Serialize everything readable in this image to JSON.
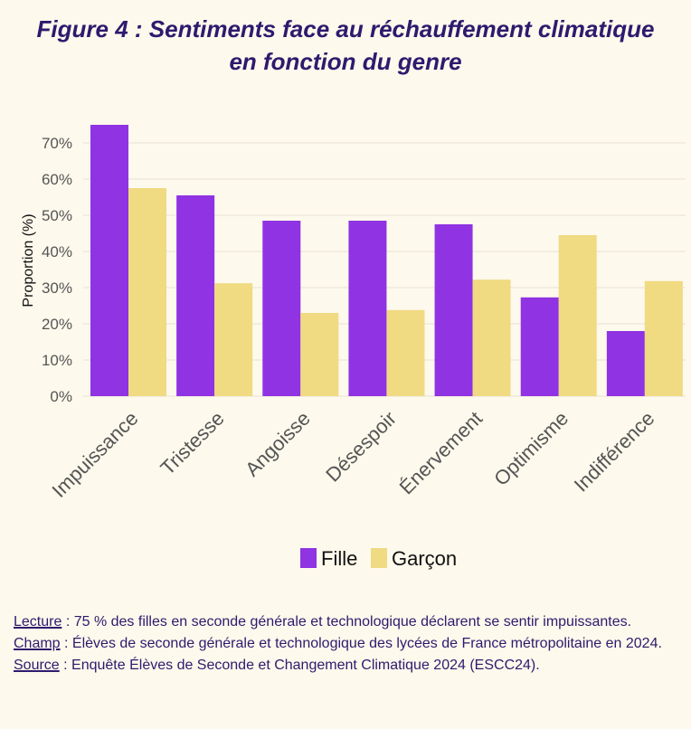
{
  "title_line1": "Figure 4 : Sentiments face au réchauffement climatique",
  "title_line2": "en fonction du genre",
  "chart_data": {
    "type": "bar",
    "categories": [
      "Impuissance",
      "Tristesse",
      "Angoisse",
      "Désespoir",
      "Énervement",
      "Optimisme",
      "Indifférence"
    ],
    "series": [
      {
        "name": "Fille",
        "color": "#8f33e3",
        "values": [
          75,
          55.5,
          48.5,
          48.5,
          47.5,
          27.3,
          18
        ]
      },
      {
        "name": "Garçon",
        "color": "#f0da82",
        "values": [
          57.5,
          31.2,
          23,
          23.8,
          32.2,
          44.5,
          31.8
        ]
      }
    ],
    "ylabel": "Proportion (%)",
    "xlabel": "",
    "ylim": [
      0,
      75
    ],
    "yticks": [
      "0%",
      "10%",
      "20%",
      "30%",
      "40%",
      "50%",
      "60%",
      "70%"
    ],
    "grid": true,
    "legend_position": "bottom"
  },
  "notes": [
    {
      "key": "Lecture",
      "text": " : 75 % des filles en seconde générale et technologique déclarent se sentir impuissantes."
    },
    {
      "key": "Champ",
      "text": " : Élèves de seconde générale et technologique des lycées de France métropolitaine en 2024."
    },
    {
      "key": "Source",
      "text": " : Enquête Élèves de Seconde et Changement Climatique 2024 (ESCC24)."
    }
  ]
}
